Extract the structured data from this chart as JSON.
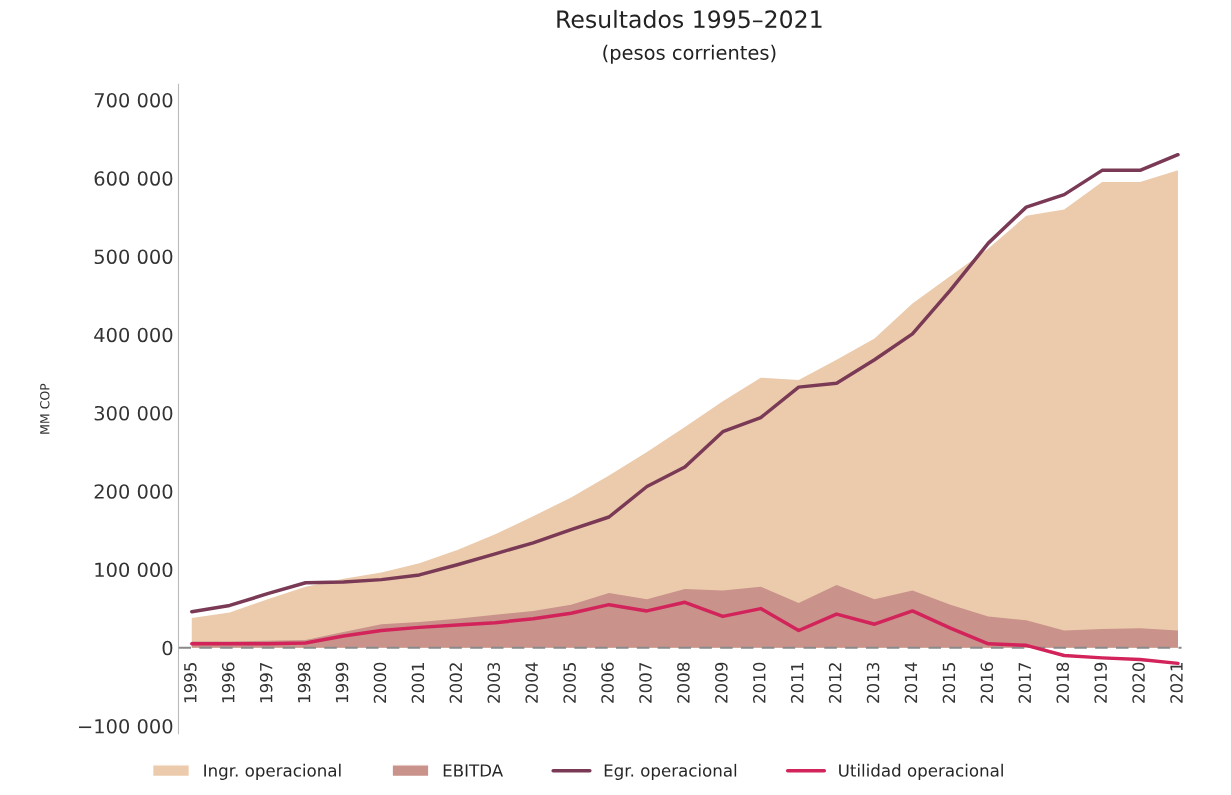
{
  "chart_data": {
    "type": "area",
    "title": "Resultados 1995–2021",
    "subtitle": "(pesos corrientes)",
    "ylabel": "MM COP",
    "categories": [
      "1995",
      "1996",
      "1997",
      "1998",
      "1999",
      "2000",
      "2001",
      "2002",
      "2003",
      "2004",
      "2005",
      "2006",
      "2007",
      "2008",
      "2009",
      "2010",
      "2011",
      "2012",
      "2013",
      "2014",
      "2015",
      "2016",
      "2017",
      "2018",
      "2019",
      "2020",
      "2021"
    ],
    "series": [
      {
        "name": "Ingr. operacional",
        "color": "#ebcbac",
        "values": [
          38000,
          45000,
          62000,
          78000,
          88000,
          96000,
          108000,
          125000,
          145000,
          168000,
          192000,
          220000,
          250000,
          282000,
          315000,
          345000,
          342000,
          368000,
          395000,
          440000,
          475000,
          510000,
          552000,
          560000,
          595000,
          595000,
          610000
        ]
      },
      {
        "name": "EBITDA",
        "color": "#c9928a",
        "values": [
          8000,
          8000,
          9000,
          10000,
          20000,
          30000,
          33000,
          37000,
          42000,
          47000,
          55000,
          70000,
          62000,
          75000,
          73000,
          78000,
          57000,
          80000,
          62000,
          73000,
          55000,
          40000,
          35000,
          22000,
          24000,
          25000,
          22000
        ]
      },
      {
        "name": "Egr. operacional",
        "type": "line",
        "color": "#7a3a55",
        "values": [
          46000,
          54000,
          69000,
          83000,
          84000,
          87000,
          93000,
          106000,
          120000,
          134000,
          151000,
          167000,
          206000,
          231000,
          276000,
          294000,
          333000,
          338000,
          368000,
          401000,
          457000,
          517000,
          563000,
          579000,
          610000,
          610000,
          630000
        ]
      },
      {
        "name": "Utilidad operacional",
        "type": "line",
        "color": "#d2245a",
        "values": [
          5000,
          5000,
          5000,
          6000,
          15000,
          22000,
          26000,
          29000,
          32000,
          37000,
          44000,
          55000,
          47000,
          58000,
          40000,
          50000,
          22000,
          43000,
          30000,
          47000,
          25000,
          5000,
          3000,
          -10000,
          -13000,
          -15000,
          -20000
        ]
      }
    ],
    "ylim": [
      -110000,
      720000
    ],
    "yticks": [
      {
        "value": -100000,
        "label": "−100 000"
      },
      {
        "value": 0,
        "label": "0"
      },
      {
        "value": 100000,
        "label": "100 000"
      },
      {
        "value": 200000,
        "label": "200 000"
      },
      {
        "value": 300000,
        "label": "300 000"
      },
      {
        "value": 400000,
        "label": "400 000"
      },
      {
        "value": 500000,
        "label": "500 000"
      },
      {
        "value": 600000,
        "label": "600 000"
      },
      {
        "value": 700000,
        "label": "700 000"
      }
    ],
    "ref_lines": [
      {
        "axis": "y",
        "value": 0,
        "color": "#8a8a8a",
        "line_style": "dashed"
      }
    ],
    "grid": false,
    "legend": "bottom",
    "line_style": "solid"
  }
}
